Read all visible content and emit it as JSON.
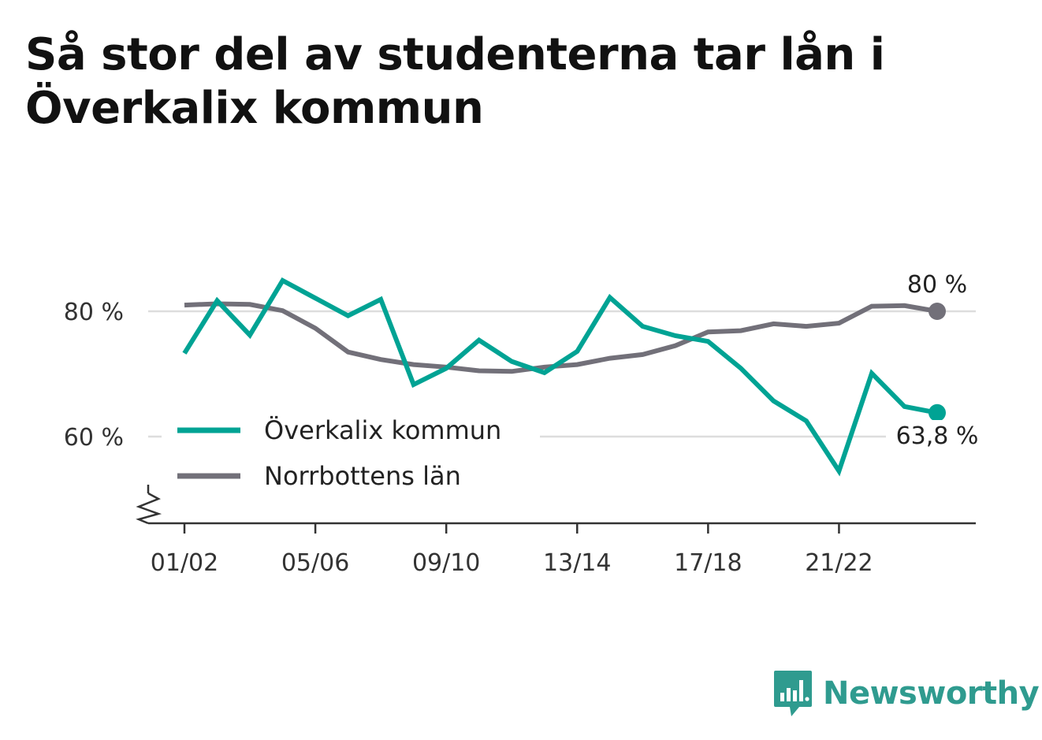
{
  "title": "Så stor del av studenterna tar lån i Överkalix kommun",
  "brand": "Newsworthy",
  "colors": {
    "teal": "#00a394",
    "gray": "#727079",
    "grid": "#dddddd",
    "axis": "#333333"
  },
  "chart_data": {
    "type": "line",
    "title": "Så stor del av studenterna tar lån i Överkalix kommun",
    "xlabel": "",
    "ylabel": "",
    "x": [
      "01/02",
      "02/03",
      "03/04",
      "04/05",
      "05/06",
      "06/07",
      "07/08",
      "08/09",
      "09/10",
      "10/11",
      "11/12",
      "12/13",
      "13/14",
      "14/15",
      "15/16",
      "16/17",
      "17/18",
      "18/19",
      "19/20",
      "20/21",
      "21/22",
      "22/23",
      "23/24",
      "24/25"
    ],
    "x_ticks": [
      "01/02",
      "05/06",
      "09/10",
      "13/14",
      "17/18",
      "21/22"
    ],
    "y_ticks": [
      60,
      80
    ],
    "y_tick_labels": [
      "60 %",
      "80 %"
    ],
    "ylim": [
      46,
      90
    ],
    "y_axis_broken": true,
    "grid": "horizontal",
    "legend_position": "bottom-left",
    "series": [
      {
        "name": "Överkalix kommun",
        "color": "#00a394",
        "values": [
          73.3,
          81.7,
          76.2,
          84.9,
          82.1,
          79.3,
          81.9,
          68.3,
          70.9,
          75.4,
          72.0,
          70.2,
          73.6,
          82.2,
          77.6,
          76.1,
          75.2,
          70.9,
          65.7,
          62.5,
          54.5,
          70.1,
          64.8,
          63.8
        ],
        "end_label": "63,8 %"
      },
      {
        "name": "Norrbottens län",
        "color": "#727079",
        "values": [
          81.0,
          81.2,
          81.1,
          80.1,
          77.3,
          73.5,
          72.3,
          71.5,
          71.1,
          70.5,
          70.4,
          71.1,
          71.5,
          72.5,
          73.1,
          74.5,
          76.7,
          76.9,
          78.0,
          77.6,
          78.1,
          80.8,
          80.9,
          80.0
        ],
        "end_label": "80 %"
      }
    ]
  }
}
